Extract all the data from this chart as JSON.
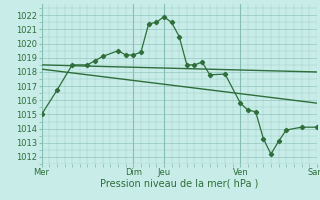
{
  "background_color": "#c8ece8",
  "grid_color": "#88bfb5",
  "line_color": "#2d6e3a",
  "xlabel": "Pression niveau de la mer( hPa )",
  "ylim": [
    1011.5,
    1022.8
  ],
  "yticks": [
    1012,
    1013,
    1014,
    1015,
    1016,
    1017,
    1018,
    1019,
    1020,
    1021,
    1022
  ],
  "xtick_labels": [
    "Mer",
    "Dim",
    "Jeu",
    "Ven",
    "Sam"
  ],
  "xtick_positions": [
    0,
    6,
    8,
    13,
    18
  ],
  "xlim": [
    0,
    18
  ],
  "series1": [
    [
      0,
      1015.0
    ],
    [
      1,
      1016.7
    ],
    [
      2,
      1018.5
    ],
    [
      3,
      1018.5
    ],
    [
      3.5,
      1018.8
    ],
    [
      4,
      1019.1
    ],
    [
      5,
      1019.5
    ],
    [
      5.5,
      1019.2
    ],
    [
      6,
      1019.2
    ],
    [
      6.5,
      1019.4
    ],
    [
      7,
      1021.4
    ],
    [
      7.5,
      1021.5
    ],
    [
      8,
      1021.9
    ],
    [
      8.5,
      1021.5
    ],
    [
      9,
      1020.5
    ],
    [
      9.5,
      1018.5
    ],
    [
      10,
      1018.5
    ],
    [
      10.5,
      1018.7
    ],
    [
      11,
      1017.8
    ],
    [
      12,
      1017.85
    ],
    [
      13,
      1015.8
    ],
    [
      13.5,
      1015.3
    ],
    [
      14,
      1015.2
    ],
    [
      14.5,
      1013.3
    ],
    [
      15,
      1012.2
    ],
    [
      15.5,
      1013.1
    ],
    [
      16,
      1013.9
    ],
    [
      17,
      1014.1
    ],
    [
      18,
      1014.1
    ]
  ],
  "series2_linear": [
    [
      0,
      1018.5
    ],
    [
      18,
      1018.0
    ]
  ],
  "series3_linear": [
    [
      0,
      1018.2
    ],
    [
      18,
      1015.8
    ]
  ],
  "day_vlines": [
    0,
    6,
    8,
    13,
    18
  ],
  "figsize": [
    3.2,
    2.0
  ],
  "dpi": 100
}
